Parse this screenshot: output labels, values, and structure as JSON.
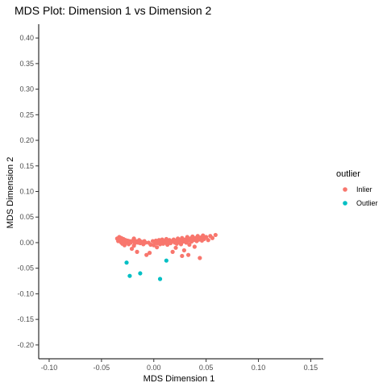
{
  "chart_data": {
    "type": "scatter",
    "title": "MDS Plot: Dimension 1 vs Dimension 2",
    "xlabel": "MDS Dimension 1",
    "ylabel": "MDS Dimension 2",
    "xlim": [
      -0.11,
      0.162
    ],
    "ylim": [
      -0.227,
      0.427
    ],
    "x_ticks": [
      -0.1,
      -0.05,
      0.0,
      0.05,
      0.1,
      0.15
    ],
    "x_tick_labels": [
      "-0.10",
      "-0.05",
      "0.00",
      "0.05",
      "0.10",
      "0.15"
    ],
    "y_ticks": [
      -0.2,
      -0.15,
      -0.1,
      -0.05,
      0.0,
      0.05,
      0.1,
      0.15,
      0.2,
      0.25,
      0.3,
      0.35,
      0.4
    ],
    "y_tick_labels": [
      "-0.20",
      "-0.15",
      "-0.10",
      "-0.05",
      "0.00",
      "0.05",
      "0.10",
      "0.15",
      "0.20",
      "0.25",
      "0.30",
      "0.35",
      "0.40"
    ],
    "grid": false,
    "legend": {
      "title": "outlier",
      "position": "right",
      "entries": [
        {
          "label": "Inlier",
          "color": "#F8766D"
        },
        {
          "label": "Outlier",
          "color": "#00BFC4"
        }
      ]
    },
    "series": [
      {
        "name": "Inlier",
        "color": "#F8766D",
        "points": [
          [
            -0.035,
            0.008
          ],
          [
            -0.034,
            0.003
          ],
          [
            -0.033,
            0.011
          ],
          [
            -0.032,
            0.006
          ],
          [
            -0.031,
            0.0
          ],
          [
            -0.031,
            0.009
          ],
          [
            -0.03,
            0.004
          ],
          [
            -0.03,
            -0.002
          ],
          [
            -0.029,
            0.007
          ],
          [
            -0.028,
            0.001
          ],
          [
            -0.028,
            -0.005
          ],
          [
            -0.027,
            0.005
          ],
          [
            -0.026,
            0.0
          ],
          [
            -0.025,
            0.004
          ],
          [
            -0.024,
            -0.003
          ],
          [
            -0.023,
            0.003
          ],
          [
            -0.022,
            0.0
          ],
          [
            -0.021,
            -0.012
          ],
          [
            -0.02,
            0.004
          ],
          [
            -0.019,
            0.008
          ],
          [
            -0.018,
            -0.001
          ],
          [
            -0.017,
            0.003
          ],
          [
            -0.016,
            -0.018
          ],
          [
            -0.015,
            0.0
          ],
          [
            -0.014,
            0.005
          ],
          [
            -0.013,
            -0.001
          ],
          [
            -0.012,
            0.002
          ],
          [
            -0.011,
            0.0
          ],
          [
            -0.01,
            -0.003
          ],
          [
            -0.009,
            0.003
          ],
          [
            -0.008,
            0.0
          ],
          [
            -0.007,
            -0.024
          ],
          [
            -0.005,
            0.0
          ],
          [
            -0.003,
            -0.004
          ],
          [
            -0.001,
            0.003
          ],
          [
            0.0,
            -0.005
          ],
          [
            0.001,
            0.0
          ],
          [
            0.002,
            0.004
          ],
          [
            0.003,
            -0.001
          ],
          [
            0.003,
            -0.009
          ],
          [
            0.004,
            0.002
          ],
          [
            0.005,
            0.005
          ],
          [
            0.006,
            -0.003
          ],
          [
            0.007,
            0.001
          ],
          [
            0.008,
            0.006
          ],
          [
            0.009,
            -0.002
          ],
          [
            0.01,
            0.003
          ],
          [
            0.011,
            0.0
          ],
          [
            0.012,
            0.007
          ],
          [
            0.013,
            -0.004
          ],
          [
            0.014,
            0.002
          ],
          [
            0.015,
            0.005
          ],
          [
            0.016,
            -0.001
          ],
          [
            0.017,
            0.003
          ],
          [
            0.018,
            -0.018
          ],
          [
            0.019,
            0.006
          ],
          [
            0.02,
            0.0
          ],
          [
            0.021,
            0.004
          ],
          [
            0.022,
            -0.002
          ],
          [
            0.023,
            0.008
          ],
          [
            0.024,
            0.001
          ],
          [
            0.025,
            0.005
          ],
          [
            0.026,
            -0.003
          ],
          [
            0.027,
            0.009
          ],
          [
            0.028,
            0.002
          ],
          [
            0.029,
            -0.015
          ],
          [
            0.03,
            0.006
          ],
          [
            0.031,
            0.0
          ],
          [
            0.032,
            0.011
          ],
          [
            0.033,
            0.004
          ],
          [
            0.034,
            -0.004
          ],
          [
            0.035,
            0.008
          ],
          [
            0.036,
            0.002
          ],
          [
            0.037,
            0.012
          ],
          [
            0.038,
            0.005
          ],
          [
            0.039,
            -0.008
          ],
          [
            0.04,
            0.009
          ],
          [
            0.041,
            0.003
          ],
          [
            0.042,
            0.013
          ],
          [
            0.043,
            0.006
          ],
          [
            0.044,
            -0.03
          ],
          [
            0.045,
            0.01
          ],
          [
            0.046,
            0.004
          ],
          [
            0.047,
            0.014
          ],
          [
            0.048,
            0.007
          ],
          [
            0.05,
            0.011
          ],
          [
            0.052,
            0.005
          ],
          [
            0.054,
            0.013
          ],
          [
            0.056,
            0.009
          ],
          [
            0.059,
            0.015
          ],
          [
            0.027,
            -0.026
          ],
          [
            0.033,
            -0.024
          ],
          [
            -0.004,
            -0.02
          ],
          [
            0.021,
            -0.01
          ],
          [
            -0.019,
            -0.006
          ]
        ]
      },
      {
        "name": "Outlier",
        "color": "#00BFC4",
        "points": [
          [
            -0.026,
            -0.039
          ],
          [
            -0.023,
            -0.065
          ],
          [
            -0.013,
            -0.06
          ],
          [
            0.006,
            -0.071
          ],
          [
            0.012,
            -0.035
          ]
        ]
      }
    ]
  }
}
